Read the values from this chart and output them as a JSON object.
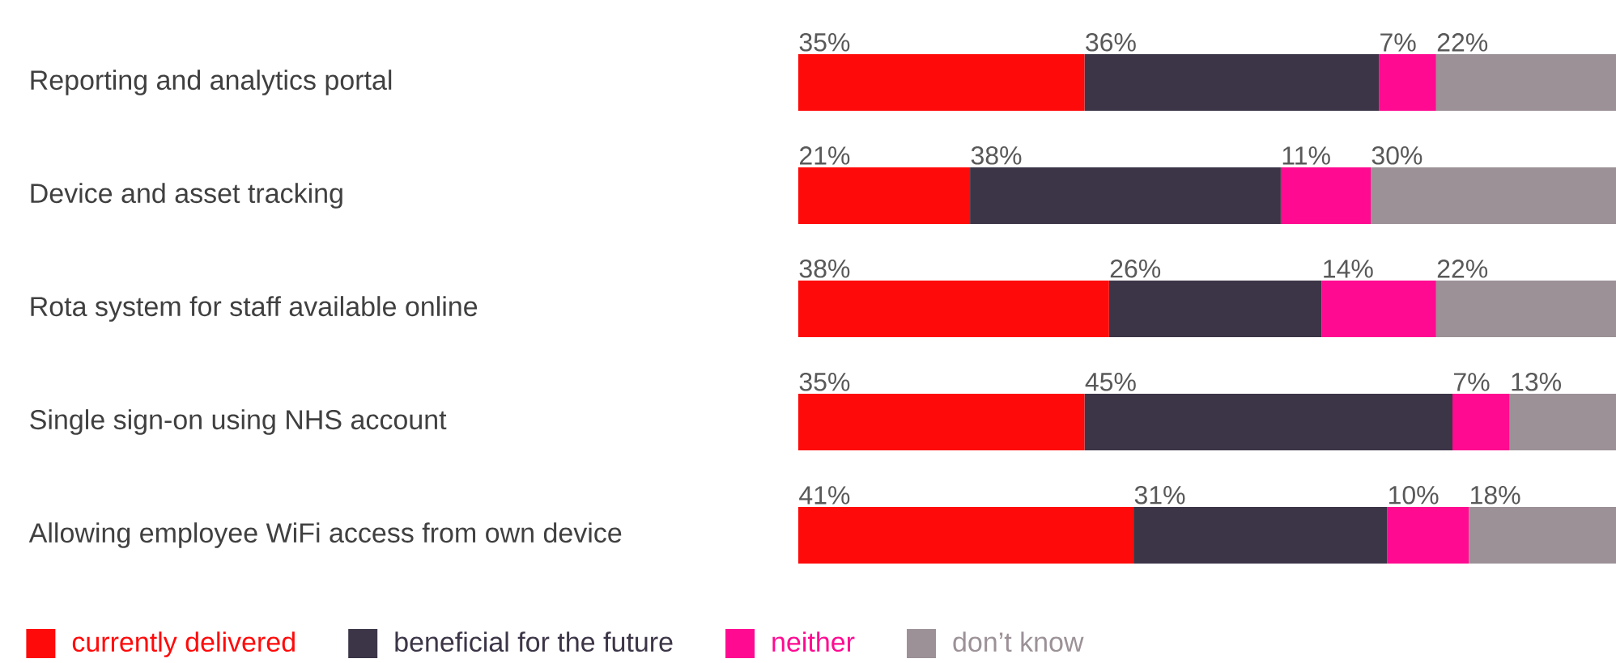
{
  "chart_data": {
    "type": "bar",
    "orientation": "horizontal",
    "stacked": true,
    "legend": "bottom",
    "categories": [
      "Reporting and analytics portal",
      "Device and asset tracking",
      "Rota system for staff available online",
      "Single sign-on using NHS account",
      "Allowing employee WiFi access from own device"
    ],
    "series": [
      {
        "name": "currently delivered",
        "color": "#ff0a0a",
        "values": [
          35,
          21,
          38,
          35,
          41
        ],
        "value_labels": [
          "35%",
          "21%",
          "38%",
          "35%",
          "41%"
        ]
      },
      {
        "name": "beneficial for the future",
        "color": "#3c3547",
        "values": [
          36,
          38,
          26,
          45,
          31
        ],
        "value_labels": [
          "36%",
          "38%",
          "26%",
          "45%",
          "31%"
        ]
      },
      {
        "name": "neither",
        "color": "#ff0a91",
        "values": [
          7,
          11,
          14,
          7,
          10
        ],
        "value_labels": [
          "7%",
          "11%",
          "14%",
          "7%",
          "10%"
        ]
      },
      {
        "name": "don’t know",
        "color": "#9b9197",
        "values": [
          22,
          30,
          22,
          13,
          18
        ],
        "value_labels": [
          "22%",
          "30%",
          "22%",
          "13%",
          "18%"
        ]
      }
    ]
  }
}
